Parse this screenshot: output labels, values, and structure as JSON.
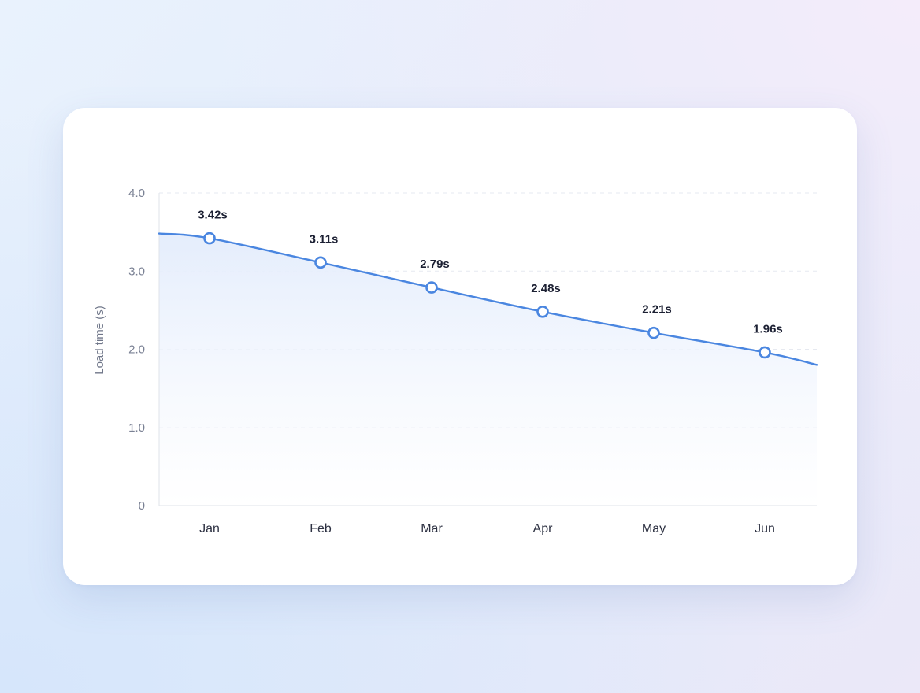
{
  "chart_data": {
    "type": "line",
    "title": "",
    "xlabel": "",
    "ylabel": "Load time (s)",
    "categories": [
      "Jan",
      "Feb",
      "Mar",
      "Apr",
      "May",
      "Jun"
    ],
    "series": [
      {
        "values": [
          3.42,
          3.11,
          2.79,
          2.48,
          2.21,
          1.96
        ],
        "data_labels": [
          "3.42s",
          "3.11s",
          "2.79s",
          "2.48s",
          "2.21s",
          "1.96s"
        ]
      }
    ],
    "ylim": [
      0,
      4
    ],
    "yticks": [
      0,
      1,
      2,
      3,
      4
    ],
    "ytick_labels": [
      "0",
      "1.0",
      "2.0",
      "3.0",
      "4.0"
    ],
    "line_extends_past_points": {
      "left_value": 3.48,
      "right_value": 1.8
    },
    "grid": true,
    "grid_style": "dashed horizontal",
    "area_fill": true,
    "legend": "none",
    "colors": {
      "line": "#4a86e0",
      "marker_fill": "#ffffff",
      "area_top": "#e5eefc",
      "grid": "#e6e9f0",
      "axis": "#dfe3ea"
    }
  }
}
